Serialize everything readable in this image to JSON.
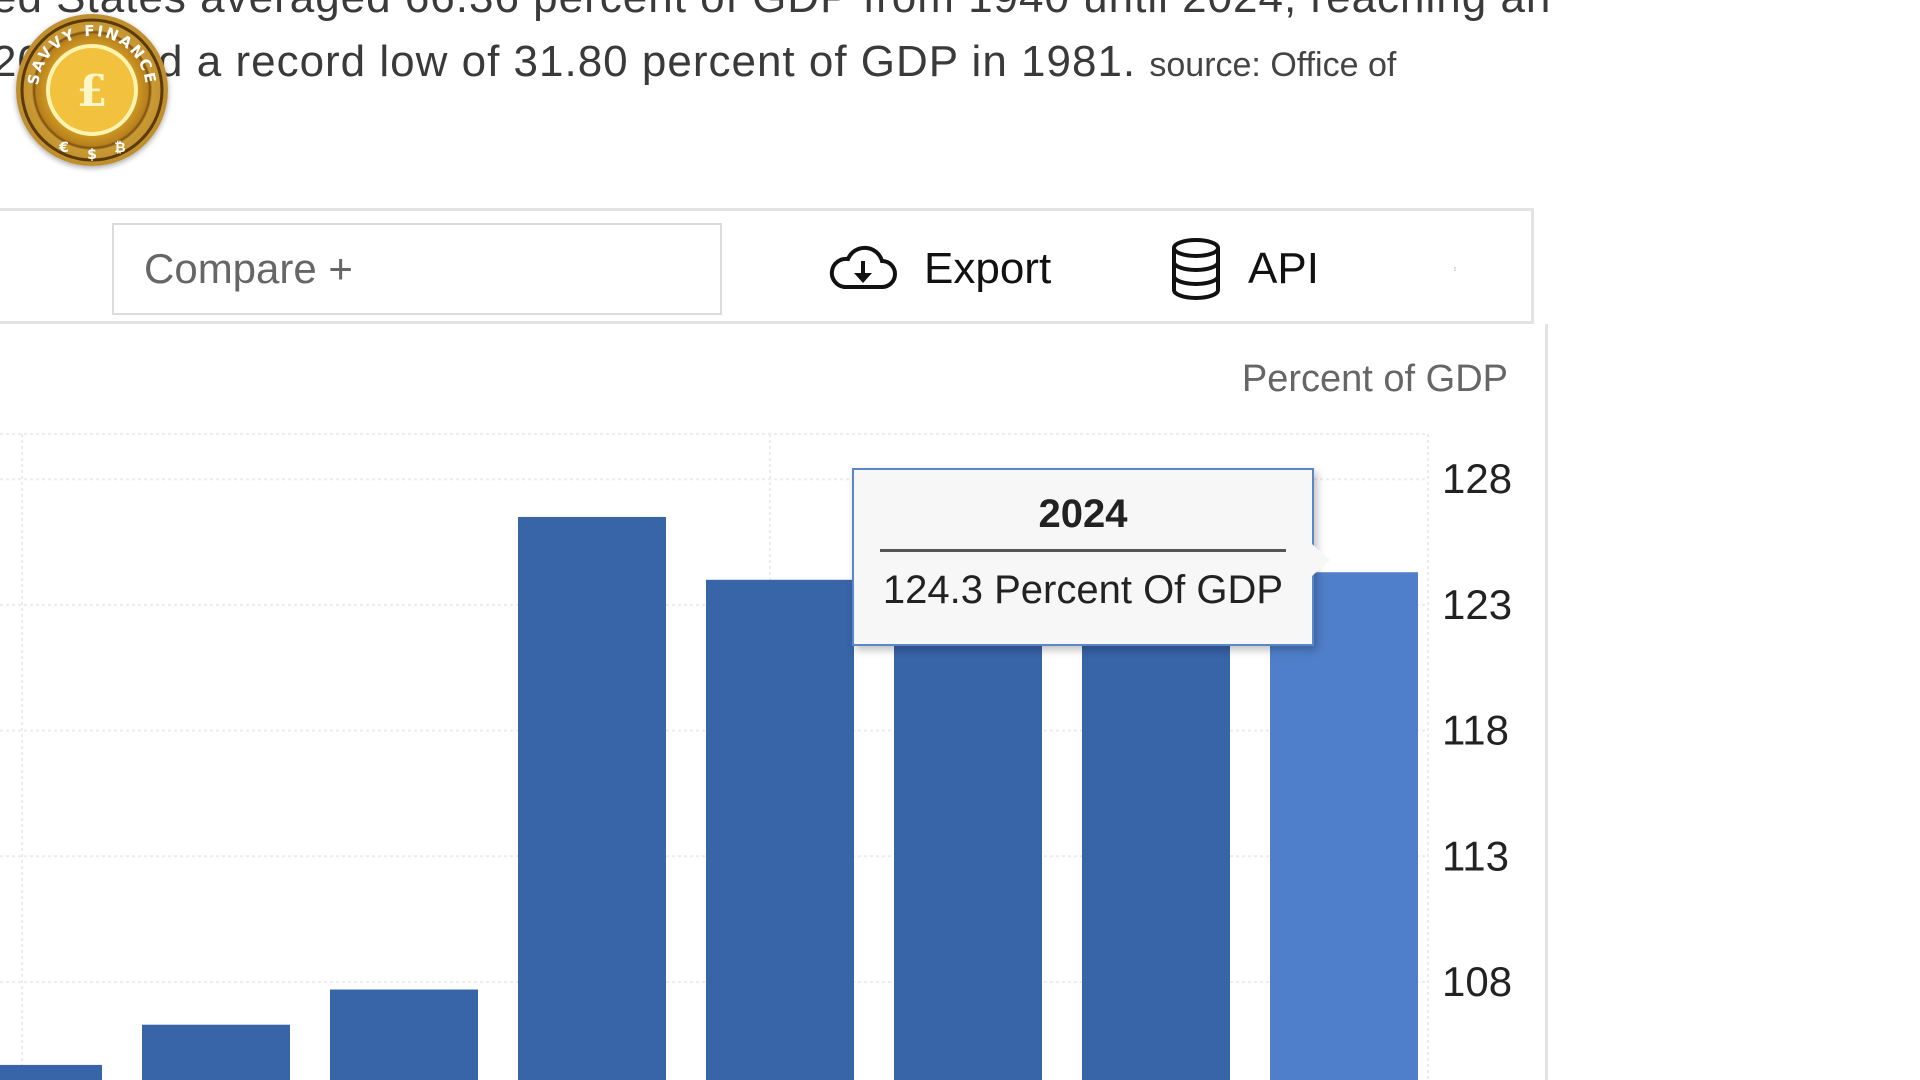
{
  "intro": {
    "line1": "ed States averaged 66.36 percent of GDP from 1940 until 2024, reaching an",
    "line2": "2020 and a record low of 31.80 percent of GDP in 1981.",
    "source": "source: Office of"
  },
  "logo": {
    "text": "SAVVY FINANCE",
    "currency_main": "£",
    "currency_small": [
      "€",
      "$",
      "₿"
    ],
    "colors": {
      "gold": "#e9b52c",
      "dark": "#7a4f10"
    }
  },
  "toolbar": {
    "compare_label": "Compare +",
    "export_label": "Export",
    "api_label": "API"
  },
  "colors": {
    "bar": "#3864a8",
    "bar_highlight": "#4f7fca",
    "grid": "#ececec",
    "axis_text": "#222222"
  },
  "tooltip": {
    "year": "2024",
    "value_text": "124.3 Percent Of GDP"
  },
  "chart_data": {
    "type": "bar",
    "ylabel": "Percent of GDP",
    "yticks": [
      108,
      113,
      118,
      123,
      128
    ],
    "ylim": [
      104.1,
      129.8
    ],
    "series": [
      {
        "values": [
          104.7,
          106.3,
          107.7,
          126.5,
          124.0,
          122.8,
          122.8,
          124.3
        ]
      }
    ],
    "highlight_index": 7,
    "grid": true
  }
}
